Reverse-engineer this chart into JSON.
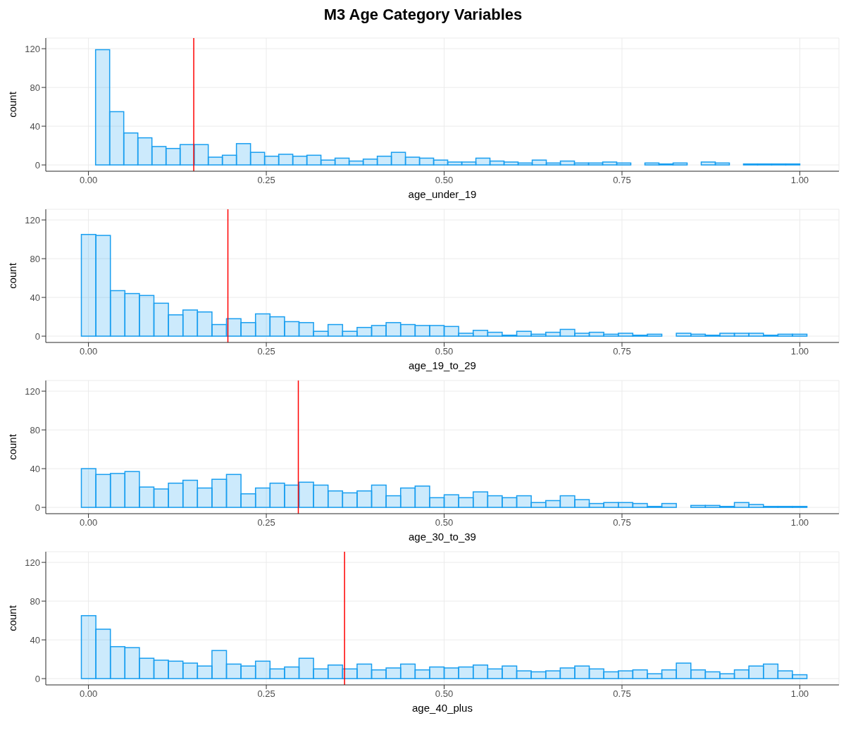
{
  "chart_data": [
    {
      "type": "histogram",
      "title": "M3 Age Category Variables",
      "xlabel": "age_under_19",
      "ylabel": "count",
      "color": "#189ef0",
      "grid": true,
      "xlim": [
        -0.06,
        1.055
      ],
      "ylim": [
        -6.5,
        131
      ],
      "yticks": [
        0,
        40,
        80,
        120
      ],
      "xticks": [
        {
          "value": 0,
          "label": "0.00"
        },
        {
          "value": 0.25,
          "label": "0.25"
        },
        {
          "value": 0.5,
          "label": "0.50"
        },
        {
          "value": 0.75,
          "label": "0.75"
        },
        {
          "value": 1,
          "label": "1.00"
        }
      ],
      "ref_lines": [
        {
          "axis": "x",
          "value": 0.148,
          "color": "#ff0000"
        }
      ],
      "bins": [
        0.01,
        0.0298,
        0.0496,
        0.0694,
        0.0892,
        0.109,
        0.1288,
        0.1486,
        0.1684,
        0.1882,
        0.208,
        0.2278,
        0.2476,
        0.2674,
        0.2872,
        0.307,
        0.3268,
        0.3466,
        0.3664,
        0.3862,
        0.406,
        0.4258,
        0.4456,
        0.4654,
        0.4852,
        0.505,
        0.5248,
        0.5446,
        0.5644,
        0.5842,
        0.604,
        0.6238,
        0.6436,
        0.6634,
        0.6832,
        0.703,
        0.7228,
        0.7426,
        0.7624,
        0.7822,
        0.802,
        0.8218,
        0.8416,
        0.8614,
        0.8812,
        0.901,
        0.9208,
        0.9406,
        0.9604,
        0.9802,
        1.0
      ],
      "values": [
        119,
        55,
        33,
        28,
        19,
        17,
        21,
        21,
        8,
        10,
        22,
        13,
        9,
        11,
        9,
        10,
        5,
        7,
        4,
        6,
        9,
        13,
        8,
        7,
        5,
        3,
        3,
        7,
        4,
        3,
        2,
        5,
        2,
        4,
        2,
        2,
        3,
        2,
        0,
        2,
        1,
        2,
        0,
        3,
        2,
        0,
        1,
        1,
        1,
        1
      ]
    },
    {
      "type": "histogram",
      "xlabel": "age_19_to_29",
      "ylabel": "count",
      "color": "#189ef0",
      "grid": true,
      "xlim": [
        -0.06,
        1.055
      ],
      "ylim": [
        -6.5,
        131
      ],
      "yticks": [
        0,
        40,
        80,
        120
      ],
      "xticks": [
        {
          "value": 0,
          "label": "0.00"
        },
        {
          "value": 0.25,
          "label": "0.25"
        },
        {
          "value": 0.5,
          "label": "0.50"
        },
        {
          "value": 0.75,
          "label": "0.75"
        },
        {
          "value": 1,
          "label": "1.00"
        }
      ],
      "ref_lines": [
        {
          "axis": "x",
          "value": 0.196,
          "color": "#ff0000"
        }
      ],
      "bins": [
        -0.01,
        0.0104,
        0.0308,
        0.0512,
        0.0716,
        0.092,
        0.1124,
        0.1328,
        0.1532,
        0.1736,
        0.194,
        0.2144,
        0.2348,
        0.2552,
        0.2756,
        0.296,
        0.3164,
        0.3368,
        0.3572,
        0.3776,
        0.398,
        0.4184,
        0.4388,
        0.4592,
        0.4796,
        0.5,
        0.5204,
        0.5408,
        0.5612,
        0.5816,
        0.602,
        0.6224,
        0.6428,
        0.6632,
        0.6836,
        0.704,
        0.7244,
        0.7448,
        0.7652,
        0.7856,
        0.806,
        0.8264,
        0.8468,
        0.8672,
        0.8876,
        0.908,
        0.9284,
        0.9488,
        0.9692,
        0.9896,
        1.01
      ],
      "values": [
        105,
        104,
        47,
        44,
        42,
        34,
        22,
        27,
        25,
        12,
        18,
        14,
        23,
        20,
        15,
        14,
        5,
        12,
        5,
        9,
        11,
        14,
        12,
        11,
        11,
        10,
        3,
        6,
        4,
        1,
        5,
        2,
        4,
        7,
        3,
        4,
        2,
        3,
        1,
        2,
        0,
        3,
        2,
        1,
        3,
        3,
        3,
        1,
        2,
        2
      ]
    },
    {
      "type": "histogram",
      "xlabel": "age_30_to_39",
      "ylabel": "count",
      "color": "#189ef0",
      "grid": true,
      "xlim": [
        -0.06,
        1.055
      ],
      "ylim": [
        -6.5,
        131
      ],
      "yticks": [
        0,
        40,
        80,
        120
      ],
      "xticks": [
        {
          "value": 0,
          "label": "0.00"
        },
        {
          "value": 0.25,
          "label": "0.25"
        },
        {
          "value": 0.5,
          "label": "0.50"
        },
        {
          "value": 0.75,
          "label": "0.75"
        },
        {
          "value": 1,
          "label": "1.00"
        }
      ],
      "ref_lines": [
        {
          "axis": "x",
          "value": 0.295,
          "color": "#ff0000"
        }
      ],
      "bins": [
        -0.01,
        0.0104,
        0.0308,
        0.0512,
        0.0716,
        0.092,
        0.1124,
        0.1328,
        0.1532,
        0.1736,
        0.194,
        0.2144,
        0.2348,
        0.2552,
        0.2756,
        0.296,
        0.3164,
        0.3368,
        0.3572,
        0.3776,
        0.398,
        0.4184,
        0.4388,
        0.4592,
        0.4796,
        0.5,
        0.5204,
        0.5408,
        0.5612,
        0.5816,
        0.602,
        0.6224,
        0.6428,
        0.6632,
        0.6836,
        0.704,
        0.7244,
        0.7448,
        0.7652,
        0.7856,
        0.806,
        0.8264,
        0.8468,
        0.8672,
        0.8876,
        0.908,
        0.9284,
        0.9488,
        0.9692,
        0.9896,
        1.01
      ],
      "values": [
        40,
        34,
        35,
        37,
        21,
        19,
        25,
        28,
        20,
        29,
        34,
        14,
        20,
        25,
        23,
        26,
        23,
        17,
        15,
        17,
        23,
        12,
        20,
        22,
        10,
        13,
        10,
        16,
        12,
        10,
        12,
        5,
        7,
        12,
        8,
        4,
        5,
        5,
        4,
        1,
        4,
        0,
        2,
        2,
        1,
        5,
        3,
        1,
        1,
        1
      ]
    },
    {
      "type": "histogram",
      "xlabel": "age_40_plus",
      "ylabel": "count",
      "color": "#189ef0",
      "grid": true,
      "xlim": [
        -0.06,
        1.055
      ],
      "ylim": [
        -6.5,
        131
      ],
      "yticks": [
        0,
        40,
        80,
        120
      ],
      "xticks": [
        {
          "value": 0,
          "label": "0.00"
        },
        {
          "value": 0.25,
          "label": "0.25"
        },
        {
          "value": 0.5,
          "label": "0.50"
        },
        {
          "value": 0.75,
          "label": "0.75"
        },
        {
          "value": 1,
          "label": "1.00"
        }
      ],
      "ref_lines": [
        {
          "axis": "x",
          "value": 0.36,
          "color": "#ff0000"
        }
      ],
      "bins": [
        -0.01,
        0.0104,
        0.0308,
        0.0512,
        0.0716,
        0.092,
        0.1124,
        0.1328,
        0.1532,
        0.1736,
        0.194,
        0.2144,
        0.2348,
        0.2552,
        0.2756,
        0.296,
        0.3164,
        0.3368,
        0.3572,
        0.3776,
        0.398,
        0.4184,
        0.4388,
        0.4592,
        0.4796,
        0.5,
        0.5204,
        0.5408,
        0.5612,
        0.5816,
        0.602,
        0.6224,
        0.6428,
        0.6632,
        0.6836,
        0.704,
        0.7244,
        0.7448,
        0.7652,
        0.7856,
        0.806,
        0.8264,
        0.8468,
        0.8672,
        0.8876,
        0.908,
        0.9284,
        0.9488,
        0.9692,
        0.9896,
        1.01
      ],
      "values": [
        65,
        51,
        33,
        32,
        21,
        19,
        18,
        16,
        13,
        29,
        15,
        13,
        18,
        10,
        12,
        21,
        10,
        14,
        10,
        15,
        9,
        11,
        15,
        9,
        12,
        11,
        12,
        14,
        10,
        13,
        8,
        7,
        8,
        11,
        13,
        10,
        7,
        8,
        9,
        5,
        9,
        16,
        9,
        7,
        5,
        9,
        13,
        15,
        8,
        4
      ]
    }
  ]
}
